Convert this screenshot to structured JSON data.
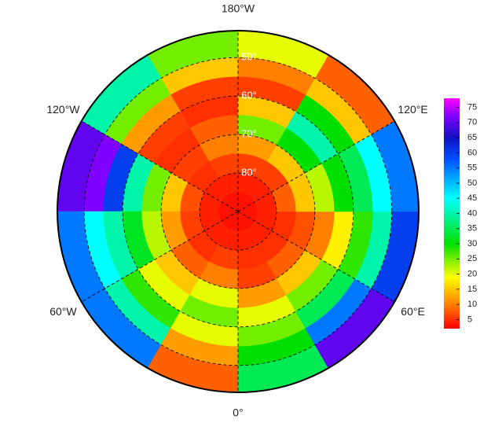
{
  "chart_data": {
    "type": "polar_heatmap",
    "lon_edges": [
      -180,
      -150,
      -120,
      -90,
      -60,
      -30,
      0,
      30,
      60,
      90,
      120,
      150,
      180
    ],
    "lat_edges": [
      43,
      50,
      55,
      60,
      65,
      70,
      75,
      80,
      85,
      90
    ],
    "values": [
      [
        25,
        15,
        6,
        5,
        8,
        10,
        6,
        4,
        3
      ],
      [
        40,
        25,
        12,
        6,
        5,
        6,
        5,
        4,
        3
      ],
      [
        70,
        72,
        60,
        40,
        25,
        15,
        7,
        4,
        3
      ],
      [
        55,
        45,
        40,
        32,
        22,
        12,
        6,
        4,
        3
      ],
      [
        55,
        40,
        28,
        20,
        15,
        8,
        5,
        4,
        3
      ],
      [
        8,
        12,
        20,
        25,
        20,
        10,
        6,
        4,
        3
      ],
      [
        35,
        30,
        25,
        20,
        12,
        6,
        5,
        4,
        3
      ],
      [
        70,
        55,
        35,
        25,
        15,
        8,
        5,
        4,
        3
      ],
      [
        60,
        40,
        28,
        18,
        10,
        7,
        5,
        4,
        3
      ],
      [
        55,
        45,
        35,
        30,
        22,
        15,
        8,
        4,
        3
      ],
      [
        8,
        15,
        30,
        40,
        30,
        15,
        6,
        4,
        3
      ],
      [
        20,
        10,
        6,
        15,
        25,
        12,
        6,
        4,
        3
      ]
    ],
    "lon_labels": [
      {
        "value": 180,
        "label": "180°W"
      },
      {
        "value": -120,
        "label": "120°W"
      },
      {
        "value": 120,
        "label": "120°E"
      },
      {
        "value": -60,
        "label": "60°W"
      },
      {
        "value": 60,
        "label": "60°E"
      },
      {
        "value": 0,
        "label": "0°"
      }
    ],
    "lat_labels": [
      {
        "value": 50,
        "label": "50°"
      },
      {
        "value": 60,
        "label": "60°"
      },
      {
        "value": 70,
        "label": "70°"
      },
      {
        "value": 80,
        "label": "80°"
      }
    ],
    "colorbar": {
      "lim": [
        2,
        78
      ],
      "ticks": [
        5,
        10,
        15,
        20,
        25,
        30,
        35,
        40,
        45,
        50,
        55,
        60,
        65,
        70,
        75
      ],
      "colormap": [
        {
          "value": 2,
          "color": "#ff0000"
        },
        {
          "value": 10,
          "color": "#ff8000"
        },
        {
          "value": 19,
          "color": "#ffff00"
        },
        {
          "value": 30,
          "color": "#00e000"
        },
        {
          "value": 45,
          "color": "#00ffff"
        },
        {
          "value": 58,
          "color": "#0050ff"
        },
        {
          "value": 65,
          "color": "#1010c0"
        },
        {
          "value": 72,
          "color": "#8000ff"
        },
        {
          "value": 78,
          "color": "#ff00ff"
        }
      ]
    }
  }
}
